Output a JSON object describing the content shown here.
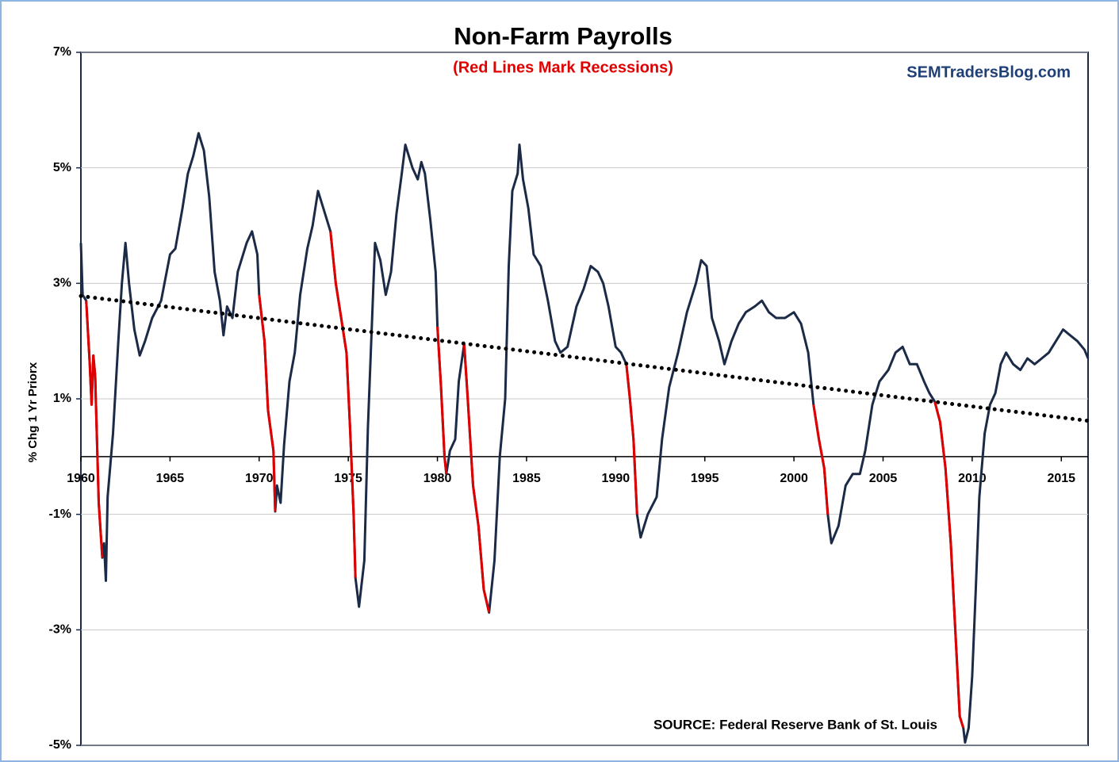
{
  "chart_data": {
    "type": "line",
    "title": "Non-Farm Payrolls",
    "subtitle": "(Red Lines Mark Recessions)",
    "watermark": "SEMTradersBlog.com",
    "source": "SOURCE: Federal Reserve Bank of St. Louis",
    "y_label": "% Chg 1 Yr Priorx",
    "xlim": [
      1960,
      2016.5
    ],
    "xticks": [
      1960,
      1965,
      1970,
      1975,
      1980,
      1985,
      1990,
      1995,
      2000,
      2005,
      2010,
      2015
    ],
    "ylim": [
      -5,
      7
    ],
    "yticks": [
      {
        "value": -5,
        "label": "-5%"
      },
      {
        "value": -3,
        "label": "-3%"
      },
      {
        "value": -1,
        "label": "-1%"
      },
      {
        "value": 1,
        "label": "1%"
      },
      {
        "value": 3,
        "label": "3%"
      },
      {
        "value": 5,
        "label": "5%"
      },
      {
        "value": 7,
        "label": "7%"
      }
    ],
    "grid": true,
    "series": [
      {
        "color": "#1b2a47",
        "x": [
          1960.0,
          1960.1,
          1960.3,
          1960.5,
          1960.6,
          1960.7,
          1960.8,
          1961.0,
          1961.2,
          1961.3,
          1961.4,
          1961.5,
          1961.8,
          1962.1,
          1962.3,
          1962.5,
          1962.7,
          1963.0,
          1963.3,
          1963.6,
          1964.0,
          1964.5,
          1965.0,
          1965.3,
          1965.7,
          1966.0,
          1966.3,
          1966.6,
          1966.9,
          1967.2,
          1967.5,
          1967.8,
          1968.0,
          1968.2,
          1968.5,
          1968.8,
          1969.3,
          1969.6,
          1969.9,
          1970.0,
          1970.3,
          1970.5,
          1970.8,
          1970.9,
          1971.0,
          1971.2,
          1971.4,
          1971.7,
          1972.0,
          1972.3,
          1972.7,
          1973.0,
          1973.3,
          1973.6,
          1974.0,
          1974.3,
          1974.6,
          1974.9,
          1975.1,
          1975.3,
          1975.4,
          1975.6,
          1975.9,
          1976.1,
          1976.5,
          1976.8,
          1977.1,
          1977.4,
          1977.7,
          1978.0,
          1978.2,
          1978.6,
          1978.9,
          1979.1,
          1979.3,
          1979.6,
          1979.9,
          1980.0,
          1980.2,
          1980.4,
          1980.5,
          1980.7,
          1981.0,
          1981.2,
          1981.5,
          1981.7,
          1982.0,
          1982.3,
          1982.6,
          1982.9,
          1983.2,
          1983.5,
          1983.8,
          1984.0,
          1984.2,
          1984.5,
          1984.6,
          1984.8,
          1985.1,
          1985.4,
          1985.8,
          1986.2,
          1986.6,
          1986.9,
          1987.3,
          1987.8,
          1988.2,
          1988.6,
          1989.0,
          1989.3,
          1989.6,
          1990.0,
          1990.3,
          1990.6,
          1990.8,
          1991.0,
          1991.2,
          1991.4,
          1991.8,
          1992.3,
          1992.6,
          1993.0,
          1993.5,
          1994.0,
          1994.5,
          1994.8,
          1995.1,
          1995.4,
          1995.8,
          1996.1,
          1996.5,
          1996.9,
          1997.3,
          1997.8,
          1998.2,
          1998.6,
          1999.0,
          1999.5,
          2000.0,
          2000.4,
          2000.8,
          2001.1,
          2001.4,
          2001.7,
          2001.9,
          2002.1,
          2002.5,
          2002.9,
          2003.3,
          2003.7,
          2004.0,
          2004.4,
          2004.8,
          2005.3,
          2005.7,
          2006.1,
          2006.5,
          2006.9,
          2007.3,
          2007.6,
          2007.9,
          2008.2,
          2008.5,
          2008.8,
          2009.1,
          2009.3,
          2009.5,
          2009.6,
          2009.8,
          2010.0,
          2010.2,
          2010.4,
          2010.7,
          2011.0,
          2011.3,
          2011.6,
          2011.9,
          2012.3,
          2012.7,
          2013.1,
          2013.5,
          2013.9,
          2014.3,
          2014.7,
          2015.1,
          2015.5,
          2015.9,
          2016.3,
          2016.5
        ],
        "values": [
          3.7,
          2.8,
          2.7,
          1.6,
          0.9,
          1.75,
          1.4,
          -0.8,
          -1.75,
          -1.5,
          -2.15,
          -0.7,
          0.4,
          2.0,
          3.0,
          3.7,
          3.0,
          2.2,
          1.75,
          2.0,
          2.4,
          2.7,
          3.5,
          3.6,
          4.3,
          4.9,
          5.2,
          5.6,
          5.3,
          4.5,
          3.2,
          2.7,
          2.1,
          2.6,
          2.4,
          3.2,
          3.7,
          3.9,
          3.5,
          2.8,
          2.0,
          0.8,
          0.1,
          -0.95,
          -0.5,
          -0.8,
          0.2,
          1.3,
          1.8,
          2.8,
          3.6,
          4.0,
          4.6,
          4.3,
          3.9,
          3.0,
          2.4,
          1.8,
          0.5,
          -1.0,
          -2.1,
          -2.6,
          -1.8,
          0.5,
          3.7,
          3.4,
          2.8,
          3.2,
          4.2,
          4.9,
          5.4,
          5.0,
          4.8,
          5.1,
          4.9,
          4.1,
          3.2,
          2.25,
          1.2,
          0.0,
          -0.3,
          0.1,
          0.3,
          1.3,
          1.95,
          1.0,
          -0.5,
          -1.2,
          -2.3,
          -2.7,
          -1.8,
          0.0,
          1.0,
          3.3,
          4.6,
          4.9,
          5.4,
          4.8,
          4.3,
          3.5,
          3.3,
          2.7,
          2.0,
          1.8,
          1.9,
          2.6,
          2.9,
          3.3,
          3.2,
          3.0,
          2.6,
          1.9,
          1.8,
          1.6,
          1.0,
          0.3,
          -1.0,
          -1.4,
          -1.0,
          -0.7,
          0.3,
          1.2,
          1.8,
          2.5,
          3.0,
          3.4,
          3.3,
          2.4,
          2.0,
          1.6,
          2.0,
          2.3,
          2.5,
          2.6,
          2.7,
          2.5,
          2.4,
          2.4,
          2.5,
          2.3,
          1.8,
          0.9,
          0.3,
          -0.2,
          -1.0,
          -1.5,
          -1.2,
          -0.5,
          -0.3,
          -0.3,
          0.1,
          0.9,
          1.3,
          1.5,
          1.8,
          1.9,
          1.6,
          1.6,
          1.3,
          1.1,
          0.95,
          0.6,
          -0.2,
          -1.5,
          -3.3,
          -4.5,
          -4.7,
          -4.95,
          -4.7,
          -3.8,
          -2.3,
          -0.7,
          0.4,
          0.9,
          1.1,
          1.6,
          1.8,
          1.6,
          1.5,
          1.7,
          1.6,
          1.7,
          1.8,
          2.0,
          2.2,
          2.1,
          2.0,
          1.85,
          1.7
        ]
      },
      {
        "color": "#e00000",
        "x": [
          1960.3,
          1960.5,
          1960.6,
          1960.7,
          1960.8,
          1961.0,
          1961.2,
          null,
          1970.0,
          1970.3,
          1970.5,
          1970.8,
          1970.9,
          null,
          1974.0,
          1974.3,
          1974.6,
          1974.9,
          1975.1,
          1975.3,
          1975.4,
          null,
          1980.0,
          1980.2,
          1980.4,
          1980.5,
          null,
          1981.5,
          1981.7,
          1982.0,
          1982.3,
          1982.6,
          1982.9,
          null,
          1990.6,
          1990.8,
          1991.0,
          1991.2,
          null,
          2001.1,
          2001.4,
          2001.7,
          2001.9,
          null,
          2007.9,
          2008.2,
          2008.5,
          2008.8,
          2009.1,
          2009.3,
          2009.5
        ],
        "values": [
          2.7,
          1.6,
          0.9,
          1.75,
          1.4,
          -0.8,
          -1.75,
          null,
          2.8,
          2.0,
          0.8,
          0.1,
          -0.95,
          null,
          3.9,
          3.0,
          2.4,
          1.8,
          0.5,
          -1.0,
          -2.1,
          null,
          2.25,
          1.2,
          0.0,
          -0.3,
          null,
          1.95,
          1.0,
          -0.5,
          -1.2,
          -2.3,
          -2.7,
          null,
          1.6,
          1.0,
          0.3,
          -1.0,
          null,
          0.9,
          0.3,
          -0.2,
          -1.0,
          null,
          0.95,
          0.6,
          -0.2,
          -1.5,
          -3.3,
          -4.5,
          -4.7
        ]
      }
    ],
    "trend": {
      "color": "#000000",
      "x": [
        1960,
        2016.5
      ],
      "values": [
        2.78,
        0.62
      ]
    }
  }
}
